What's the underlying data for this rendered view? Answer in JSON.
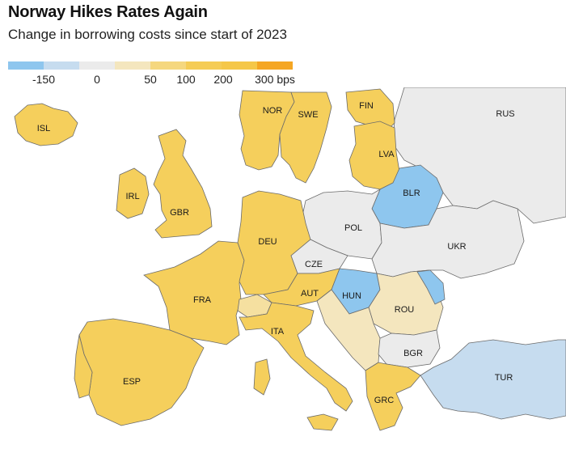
{
  "title": "Norway Hikes Rates Again",
  "subtitle": "Change in borrowing costs since start of 2023",
  "legend": {
    "colors": [
      "#8ec6ee",
      "#c6dcef",
      "#ebebeb",
      "#f4e6be",
      "#f5d77e",
      "#f5cc55",
      "#f5c748",
      "#f5a623"
    ],
    "labels": [
      "-150",
      "0",
      "50",
      "100",
      "200",
      "300 bps"
    ]
  },
  "countries": {
    "ISL": {
      "label": "ISL",
      "category": "200+"
    },
    "NOR": {
      "label": "NOR",
      "category": "200+"
    },
    "SWE": {
      "label": "SWE",
      "category": "200+"
    },
    "FIN": {
      "label": "FIN",
      "category": "200+"
    },
    "LVA": {
      "label": "LVA",
      "category": "200+"
    },
    "IRL": {
      "label": "IRL",
      "category": "200+"
    },
    "GBR": {
      "label": "GBR",
      "category": "200+"
    },
    "DEU": {
      "label": "DEU",
      "category": "200+"
    },
    "FRA": {
      "label": "FRA",
      "category": "200+"
    },
    "ESP": {
      "label": "ESP",
      "category": "200+"
    },
    "ITA": {
      "label": "ITA",
      "category": "200+"
    },
    "AUT": {
      "label": "AUT",
      "category": "200+"
    },
    "GRC": {
      "label": "GRC",
      "category": "200+"
    },
    "CZE": {
      "label": "CZE",
      "category": "~0"
    },
    "POL": {
      "label": "POL",
      "category": "~0"
    },
    "UKR": {
      "label": "UKR",
      "category": "~0"
    },
    "RUS": {
      "label": "RUS",
      "category": "~0"
    },
    "BGR": {
      "label": "BGR",
      "category": "~0"
    },
    "ROU": {
      "label": "ROU",
      "category": "50-100"
    },
    "BLR": {
      "label": "BLR",
      "category": "-150"
    },
    "HUN": {
      "label": "HUN",
      "category": "-150"
    },
    "TUR": {
      "label": "TUR",
      "category": "<0"
    }
  }
}
